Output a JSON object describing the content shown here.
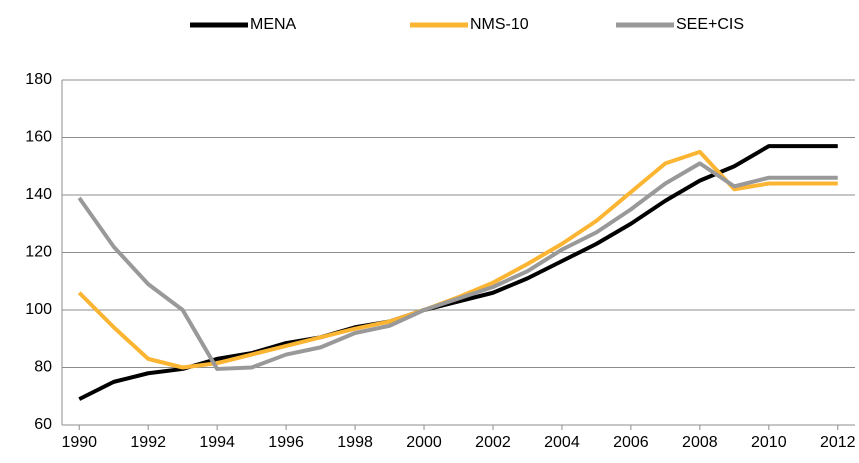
{
  "chart_data": {
    "type": "line",
    "x": [
      1990,
      1991,
      1992,
      1993,
      1994,
      1995,
      1996,
      1997,
      1998,
      1999,
      2000,
      2001,
      2002,
      2003,
      2004,
      2005,
      2006,
      2007,
      2008,
      2009,
      2010,
      2011,
      2012
    ],
    "series": [
      {
        "name": "MENA",
        "color": "#000000",
        "values": [
          69,
          75,
          78,
          79.5,
          83,
          85,
          88.5,
          90.5,
          94,
          96,
          100,
          103,
          106,
          111,
          117,
          123,
          130,
          138,
          145,
          150,
          157,
          157,
          157
        ]
      },
      {
        "name": "NMS-10",
        "color": "#fbb532",
        "values": [
          106,
          94,
          83,
          80,
          81.5,
          84.5,
          87.5,
          90.5,
          93.5,
          96,
          100,
          104.5,
          109.5,
          116,
          123,
          131,
          141,
          151,
          155,
          142,
          144,
          144,
          144
        ]
      },
      {
        "name": "SEE+CIS",
        "color": "#999999",
        "values": [
          139,
          122,
          109,
          100,
          79.5,
          80,
          84.5,
          87,
          92,
          94.5,
          100,
          104,
          108,
          113.5,
          121,
          127,
          135,
          144,
          151,
          143,
          146,
          146,
          146
        ]
      }
    ],
    "xlim": [
      1989.5,
      2012.5
    ],
    "xticks": [
      1990,
      1992,
      1994,
      1996,
      1998,
      2000,
      2002,
      2004,
      2006,
      2008,
      2010,
      2012
    ],
    "ylim": [
      60,
      180
    ],
    "yticks": [
      60,
      80,
      100,
      120,
      140,
      160,
      180
    ],
    "grid": true,
    "legend": "top"
  }
}
